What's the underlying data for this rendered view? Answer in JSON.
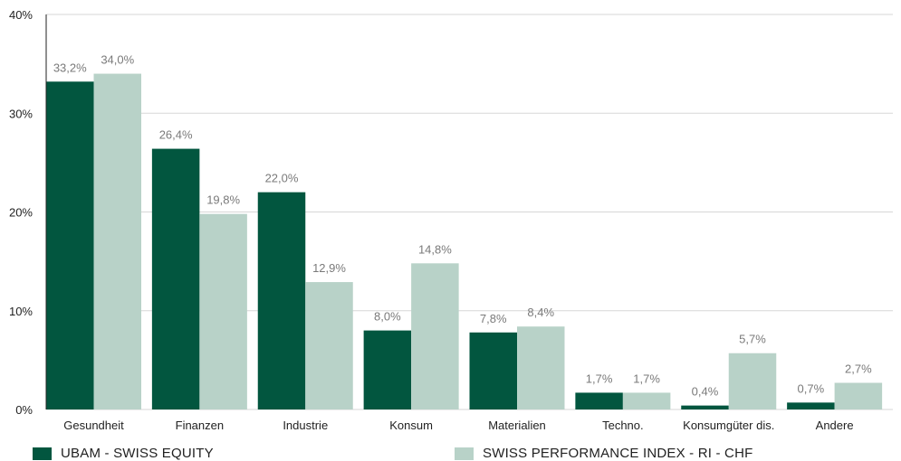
{
  "chart_data": {
    "type": "bar",
    "categories": [
      "Gesundheit",
      "Finanzen",
      "Industrie",
      "Konsum",
      "Materialien",
      "Techno.",
      "Konsumgüter dis.",
      "Andere"
    ],
    "series": [
      {
        "name": "UBAM - SWISS EQUITY",
        "values": [
          33.2,
          26.4,
          22.0,
          8.0,
          7.8,
          1.7,
          0.4,
          0.7
        ],
        "labels": [
          "33,2%",
          "26,4%",
          "22,0%",
          "8,0%",
          "7,8%",
          "1,7%",
          "0,4%",
          "0,7%"
        ],
        "color": "#02563f"
      },
      {
        "name": "SWISS PERFORMANCE INDEX - RI - CHF",
        "values": [
          34.0,
          19.8,
          12.9,
          14.8,
          8.4,
          1.7,
          5.7,
          2.7
        ],
        "labels": [
          "34,0%",
          "19,8%",
          "12,9%",
          "14,8%",
          "8,4%",
          "1,7%",
          "5,7%",
          "2,7%"
        ],
        "color": "#b8d2c8"
      }
    ],
    "yticks": [
      0,
      10,
      20,
      30,
      40
    ],
    "ytick_labels": [
      "0%",
      "10%",
      "20%",
      "30%",
      "40%"
    ],
    "ylim": [
      0,
      40
    ],
    "grid": true,
    "legend": "bottom"
  }
}
